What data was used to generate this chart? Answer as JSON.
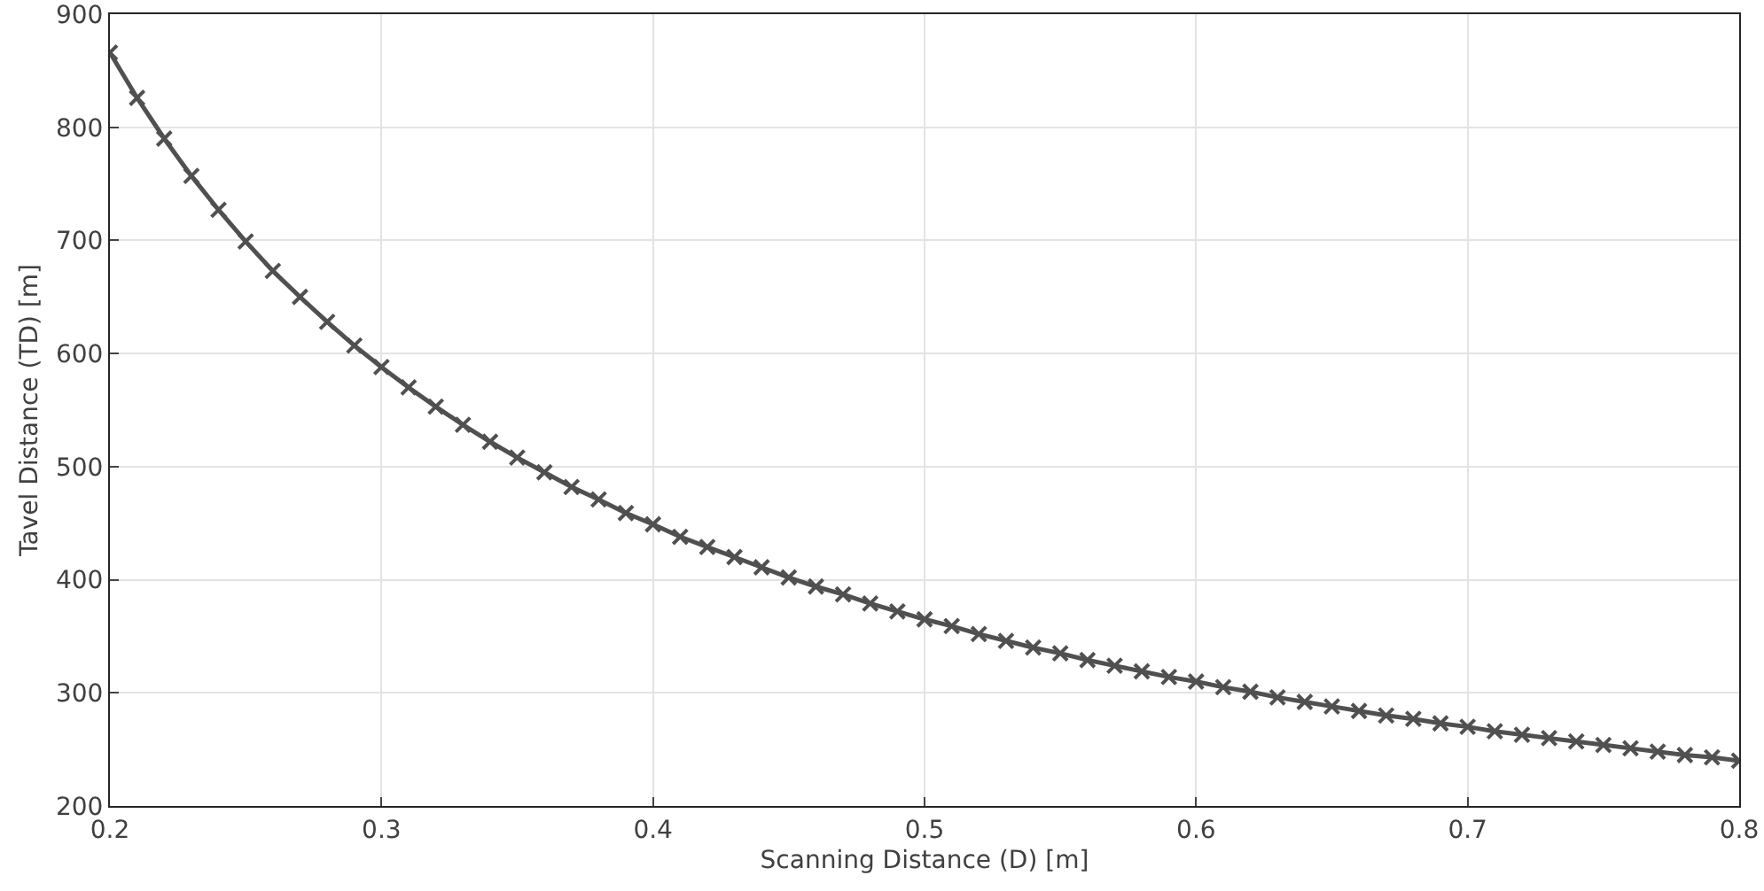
{
  "chart_data": {
    "type": "line",
    "xlabel": "Scanning Distance (D) [m]",
    "ylabel": "Tavel Distance (TD) [m]",
    "x": [
      0.2,
      0.21,
      0.22,
      0.23,
      0.24,
      0.25,
      0.26,
      0.27,
      0.28,
      0.29,
      0.3,
      0.31,
      0.32,
      0.33,
      0.34,
      0.35,
      0.36,
      0.37,
      0.38,
      0.39,
      0.4,
      0.41,
      0.42,
      0.43,
      0.44,
      0.45,
      0.46,
      0.47,
      0.48,
      0.49,
      0.5,
      0.51,
      0.52,
      0.53,
      0.54,
      0.55,
      0.56,
      0.57,
      0.58,
      0.59,
      0.6,
      0.61,
      0.62,
      0.63,
      0.64,
      0.65,
      0.66,
      0.67,
      0.68,
      0.69,
      0.7,
      0.71,
      0.72,
      0.73,
      0.74,
      0.75,
      0.76,
      0.77,
      0.78,
      0.79,
      0.8
    ],
    "series": [
      {
        "color": "#505050",
        "values": [
          866,
          826,
          790,
          757,
          727,
          699,
          673,
          650,
          628,
          607,
          588,
          570,
          553,
          537,
          522,
          508,
          495,
          482,
          471,
          459,
          449,
          438,
          429,
          420,
          411,
          402,
          394,
          387,
          379,
          372,
          365,
          359,
          352,
          346,
          340,
          335,
          329,
          324,
          319,
          314,
          310,
          305,
          301,
          296,
          292,
          288,
          284,
          280,
          277,
          273,
          270,
          266,
          263,
          260,
          257,
          254,
          251,
          248,
          245,
          243,
          240
        ]
      }
    ],
    "xlim": [
      0.2,
      0.8
    ],
    "xticks": [
      0.2,
      0.3,
      0.4,
      0.5,
      0.6,
      0.7,
      0.8
    ],
    "ylim": [
      200,
      900
    ],
    "yticks": [
      200,
      300,
      400,
      500,
      600,
      700,
      800,
      900
    ],
    "grid": true,
    "marker": "cross",
    "line_style": "solid"
  }
}
